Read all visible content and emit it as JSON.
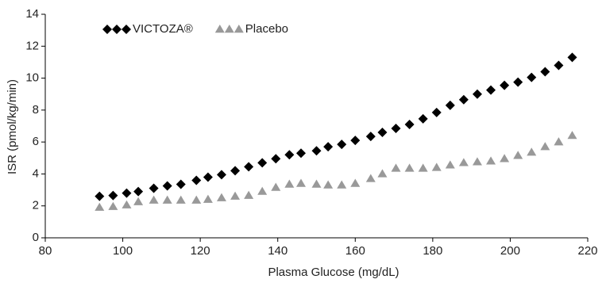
{
  "chart_data": {
    "type": "scatter",
    "xlabel": "Plasma Glucose (mg/dL)",
    "ylabel": "ISR (pmol/kg/min)",
    "x": [
      94,
      97.5,
      101,
      104,
      108,
      111.5,
      115,
      119,
      122,
      125.5,
      129,
      132.5,
      136,
      139.5,
      143,
      146,
      150,
      153,
      156.5,
      160,
      164,
      167,
      170.5,
      174,
      177.5,
      181,
      184.5,
      188,
      191.5,
      195,
      198.5,
      202,
      205.5,
      209,
      212.5,
      216
    ],
    "series": [
      {
        "name": "VICTOZA®",
        "color": "#000000",
        "marker": "diamond",
        "values": [
          2.6,
          2.65,
          2.8,
          2.9,
          3.1,
          3.25,
          3.35,
          3.6,
          3.8,
          3.95,
          4.2,
          4.45,
          4.7,
          4.95,
          5.2,
          5.3,
          5.45,
          5.7,
          5.85,
          6.1,
          6.35,
          6.6,
          6.85,
          7.1,
          7.45,
          7.85,
          8.3,
          8.65,
          9.0,
          9.25,
          9.55,
          9.75,
          10.05,
          10.4,
          10.8,
          11.3
        ]
      },
      {
        "name": "Placebo",
        "color": "#999999",
        "marker": "triangle",
        "values": [
          1.9,
          1.95,
          2.05,
          2.25,
          2.35,
          2.35,
          2.35,
          2.35,
          2.4,
          2.5,
          2.6,
          2.65,
          2.9,
          3.15,
          3.35,
          3.4,
          3.35,
          3.3,
          3.3,
          3.4,
          3.7,
          4.0,
          4.35,
          4.35,
          4.35,
          4.4,
          4.55,
          4.7,
          4.75,
          4.8,
          4.95,
          5.15,
          5.35,
          5.7,
          6.0,
          6.4
        ]
      }
    ],
    "xlim": [
      80,
      220
    ],
    "xticks": [
      80,
      100,
      120,
      140,
      160,
      180,
      200,
      220
    ],
    "ylim": [
      0,
      14
    ],
    "yticks": [
      0,
      2,
      4,
      6,
      8,
      10,
      12,
      14
    ],
    "legend": "top-left",
    "grid": false
  }
}
